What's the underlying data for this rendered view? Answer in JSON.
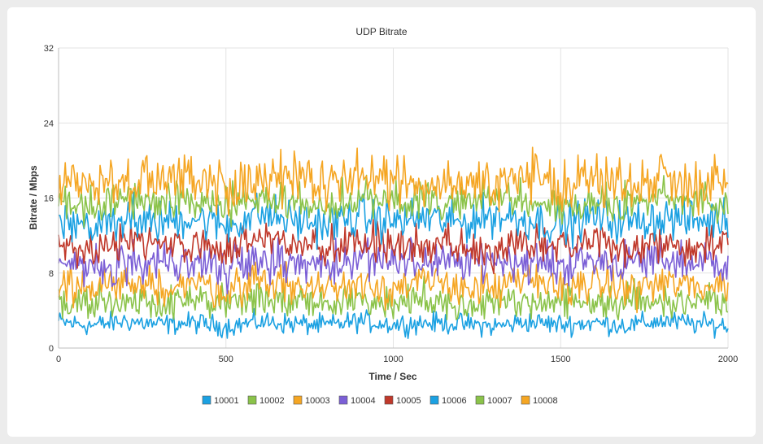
{
  "chart_data": {
    "type": "line",
    "title": "UDP Bitrate",
    "xlabel": "Time / Sec",
    "ylabel": "Bitrate / Mbps",
    "xlim": [
      0,
      2000
    ],
    "ylim": [
      0,
      32
    ],
    "x_ticks": [
      0,
      500,
      1000,
      1500,
      2000
    ],
    "y_ticks": [
      0,
      8,
      16,
      24,
      32
    ],
    "grid": true,
    "legend_position": "bottom",
    "sample_interval_sec": 100,
    "x": [
      0,
      100,
      200,
      300,
      400,
      500,
      600,
      700,
      800,
      900,
      1000,
      1100,
      1200,
      1300,
      1400,
      1500,
      1600,
      1700,
      1800,
      1900,
      2000
    ],
    "series": [
      {
        "name": "10001",
        "color": "#1ba1e2",
        "values": [
          2.8,
          2.4,
          2.9,
          2.5,
          2.7,
          2.3,
          2.8,
          2.6,
          2.4,
          2.9,
          2.5,
          2.7,
          2.6,
          2.3,
          2.8,
          2.5,
          2.7,
          2.4,
          2.9,
          2.6,
          2.4
        ]
      },
      {
        "name": "10002",
        "color": "#8bc34a",
        "values": [
          5.0,
          4.6,
          5.3,
          4.8,
          5.2,
          4.5,
          5.4,
          4.9,
          4.7,
          5.1,
          4.8,
          5.3,
          4.6,
          5.0,
          4.9,
          5.2,
          4.7,
          5.1,
          4.8,
          5.3,
          5.0
        ]
      },
      {
        "name": "10003",
        "color": "#f5a623",
        "values": [
          6.8,
          6.2,
          7.3,
          6.5,
          7.0,
          6.1,
          7.4,
          6.6,
          6.3,
          7.1,
          6.4,
          6.9,
          6.7,
          6.2,
          7.2,
          6.5,
          7.0,
          6.3,
          6.9,
          6.6,
          6.8
        ]
      },
      {
        "name": "10004",
        "color": "#7b5fd6",
        "values": [
          9.2,
          8.7,
          9.6,
          9.0,
          9.4,
          8.6,
          9.8,
          9.1,
          8.8,
          9.5,
          9.0,
          9.3,
          8.9,
          9.6,
          9.2,
          8.8,
          9.4,
          9.0,
          9.5,
          9.1,
          9.3
        ]
      },
      {
        "name": "10005",
        "color": "#c0392b",
        "values": [
          11.0,
          10.4,
          11.6,
          10.8,
          11.3,
          10.5,
          11.7,
          10.9,
          10.6,
          11.4,
          10.7,
          11.2,
          11.0,
          10.5,
          11.5,
          10.8,
          11.3,
          10.6,
          11.1,
          10.9,
          11.2
        ]
      },
      {
        "name": "10006",
        "color": "#1ba1e2",
        "values": [
          13.8,
          13.1,
          14.3,
          13.4,
          14.0,
          13.0,
          14.4,
          13.6,
          13.2,
          14.1,
          13.5,
          13.9,
          13.3,
          14.2,
          13.7,
          13.1,
          14.0,
          13.4,
          13.9,
          13.6,
          13.8
        ]
      },
      {
        "name": "10007",
        "color": "#8bc34a",
        "values": [
          15.6,
          15.0,
          16.2,
          15.3,
          15.9,
          14.9,
          16.3,
          15.5,
          15.1,
          16.0,
          15.4,
          15.8,
          15.2,
          16.1,
          15.6,
          15.0,
          15.9,
          15.3,
          15.8,
          15.5,
          15.7
        ]
      },
      {
        "name": "10008",
        "color": "#f5a623",
        "values": [
          17.8,
          17.1,
          18.4,
          17.5,
          18.6,
          17.2,
          18.3,
          17.6,
          17.2,
          18.7,
          17.4,
          18.0,
          17.7,
          17.3,
          18.2,
          17.5,
          18.1,
          17.3,
          18.5,
          17.6,
          17.8
        ]
      }
    ]
  }
}
